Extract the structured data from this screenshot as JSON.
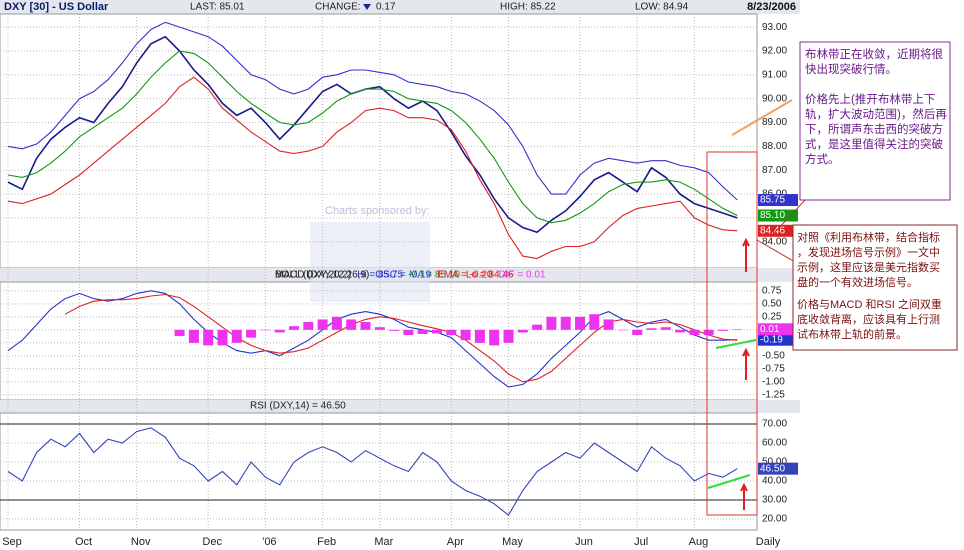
{
  "header": {
    "symbol": "DXY [30] - US Dollar",
    "last": "LAST: 85.01",
    "change_label": "CHANGE:",
    "change": "0.17",
    "high": "HIGH: 85.22",
    "low": "LOW: 84.94",
    "date": "8/23/2006"
  },
  "sponsor": "Charts sponsored by:",
  "chart_data": [
    {
      "type": "line",
      "title": "BOLL (DXY,20,2)",
      "period": "Daily",
      "categories": [
        "Sep",
        null,
        null,
        null,
        null,
        "Oct",
        null,
        null,
        null,
        "Nov",
        null,
        null,
        null,
        null,
        "Dec",
        null,
        null,
        null,
        "'06",
        null,
        null,
        null,
        "Feb",
        null,
        null,
        null,
        "Mar",
        null,
        null,
        null,
        null,
        "Apr",
        null,
        null,
        null,
        "May",
        null,
        null,
        null,
        null,
        "Jun",
        null,
        null,
        null,
        "Jul",
        null,
        null,
        null,
        "Aug",
        null,
        null,
        null
      ],
      "ylim": [
        82.9,
        93.55
      ],
      "yticks": [
        {
          "value": 84,
          "label": "84.00"
        },
        {
          "value": 85,
          "label": "85.00"
        },
        {
          "value": 86,
          "label": "86.00"
        },
        {
          "value": 87,
          "label": "87.00"
        },
        {
          "value": 88,
          "label": "88.00"
        },
        {
          "value": 89,
          "label": "89.00"
        },
        {
          "value": 90,
          "label": "90.00"
        },
        {
          "value": 91,
          "label": "91.00"
        },
        {
          "value": 92,
          "label": "92.00"
        },
        {
          "value": 93,
          "label": "93.00"
        }
      ],
      "grid": true,
      "series": [
        {
          "color": "#1a1a8c",
          "values": [
            86.5,
            86.2,
            87.5,
            88.3,
            88.8,
            89.2,
            89.0,
            89.8,
            90.5,
            91.5,
            92.3,
            92.6,
            92.0,
            91.2,
            90.6,
            89.8,
            89.3,
            89.6,
            89.0,
            88.3,
            88.9,
            89.6,
            90.3,
            90.6,
            90.2,
            90.4,
            90.5,
            90.0,
            89.6,
            89.9,
            89.5,
            88.6,
            87.6,
            86.8,
            85.8,
            85.0,
            84.6,
            84.4,
            84.9,
            85.3,
            85.9,
            86.6,
            86.9,
            86.5,
            86.1,
            87.1,
            86.7,
            86.0,
            85.6,
            85.4,
            85.2,
            85.0
          ]
        },
        {
          "name": "Hi = 85.75",
          "color": "#3333cc",
          "end_box": true,
          "values": [
            88.0,
            87.9,
            88.1,
            88.6,
            89.3,
            90.0,
            90.3,
            90.8,
            91.5,
            92.3,
            92.9,
            93.2,
            93.0,
            92.8,
            92.6,
            92.2,
            91.6,
            91.0,
            90.8,
            90.4,
            90.2,
            90.4,
            90.9,
            91.0,
            91.2,
            91.2,
            91.1,
            91.0,
            90.7,
            90.6,
            90.5,
            90.3,
            90.2,
            89.9,
            89.5,
            88.9,
            88.0,
            86.8,
            86.0,
            86.0,
            86.8,
            87.3,
            87.5,
            87.4,
            87.3,
            87.4,
            87.4,
            87.2,
            87.1,
            86.9,
            86.3,
            85.75
          ]
        },
        {
          "name": "MA = 85.10",
          "color": "#119911",
          "end_box": true,
          "values": [
            86.8,
            86.7,
            86.9,
            87.3,
            87.8,
            88.4,
            88.8,
            89.2,
            89.6,
            90.2,
            90.9,
            91.5,
            92.0,
            91.9,
            91.5,
            90.9,
            90.3,
            89.8,
            89.4,
            89.0,
            88.9,
            89.0,
            89.4,
            89.9,
            90.2,
            90.4,
            90.4,
            90.3,
            90.0,
            89.9,
            89.8,
            89.5,
            89.0,
            88.3,
            87.5,
            86.5,
            85.6,
            85.0,
            84.8,
            84.9,
            85.2,
            85.6,
            86.1,
            86.4,
            86.5,
            86.5,
            86.6,
            86.5,
            86.2,
            85.8,
            85.4,
            85.1
          ],
          "value_labels": [
            null,
            null,
            null,
            null,
            null,
            null,
            null,
            null,
            null,
            null,
            null,
            null,
            null,
            null,
            null,
            null,
            null,
            null,
            null,
            null,
            null,
            null,
            null,
            null,
            null,
            null,
            null,
            null,
            null,
            null,
            null,
            null,
            null,
            null,
            null,
            null,
            null,
            null,
            null,
            null,
            null,
            null,
            null,
            null,
            null,
            null,
            null,
            null,
            null,
            null,
            null,
            "85.10"
          ]
        },
        {
          "name": "Lo = 84.46",
          "color": "#dd2222",
          "end_box": true,
          "values": [
            85.7,
            85.6,
            85.8,
            86.0,
            86.4,
            86.8,
            87.3,
            87.8,
            88.3,
            88.8,
            89.3,
            89.8,
            90.5,
            90.9,
            90.4,
            89.6,
            89.1,
            88.6,
            88.2,
            87.8,
            87.7,
            87.8,
            88.0,
            88.6,
            89.0,
            89.5,
            89.6,
            89.5,
            89.2,
            89.2,
            89.1,
            88.7,
            87.8,
            86.6,
            85.6,
            84.3,
            83.4,
            83.3,
            83.6,
            83.8,
            83.8,
            84.0,
            84.6,
            85.1,
            85.4,
            85.5,
            85.6,
            85.7,
            85.0,
            84.7,
            84.5,
            84.46
          ]
        }
      ]
    },
    {
      "type": "line",
      "title": "MACD (DXY,12,26,9)",
      "ylim": [
        -1.35,
        0.92
      ],
      "yticks": [
        {
          "value": 0.75,
          "label": "0.75"
        },
        {
          "value": 0.5,
          "label": "0.50"
        },
        0.25,
        {
          "value": 0,
          "label": "0.00"
        },
        -0.25,
        {
          "value": -0.5,
          "label": "-0.50"
        },
        -0.75,
        {
          "value": -1,
          "label": "-1.00"
        },
        -1.25
      ],
      "grid": true,
      "series": [
        {
          "name": "OSC = -0.19",
          "color": "#2233cc",
          "end_box": true,
          "values": [
            -0.4,
            -0.2,
            0.1,
            0.4,
            0.6,
            0.7,
            0.6,
            0.55,
            0.6,
            0.7,
            0.75,
            0.7,
            0.5,
            0.2,
            -0.05,
            -0.25,
            -0.4,
            -0.45,
            -0.4,
            -0.5,
            -0.35,
            -0.2,
            0.0,
            0.2,
            0.3,
            0.35,
            0.3,
            0.2,
            0.05,
            0.0,
            -0.05,
            -0.15,
            -0.4,
            -0.65,
            -0.9,
            -1.1,
            -1.05,
            -0.85,
            -0.55,
            -0.3,
            -0.05,
            0.25,
            0.35,
            0.2,
            0.05,
            0.15,
            0.2,
            0.05,
            -0.1,
            -0.2,
            -0.2,
            -0.19
          ]
        },
        {
          "name": "EMA = -0.20",
          "color": "#dd2222",
          "values": [
            null,
            null,
            null,
            null,
            0.3,
            0.45,
            0.55,
            0.58,
            0.58,
            0.6,
            0.65,
            0.68,
            0.62,
            0.45,
            0.25,
            0.05,
            -0.15,
            -0.3,
            -0.4,
            -0.45,
            -0.42,
            -0.35,
            -0.2,
            -0.05,
            0.1,
            0.2,
            0.25,
            0.22,
            0.15,
            0.08,
            0.02,
            -0.05,
            -0.2,
            -0.4,
            -0.6,
            -0.85,
            -1.0,
            -0.95,
            -0.8,
            -0.55,
            -0.3,
            -0.05,
            0.15,
            0.2,
            0.15,
            0.12,
            0.15,
            0.1,
            0.0,
            -0.1,
            -0.18,
            -0.2
          ]
        },
        {
          "name": "DIF = 0.01",
          "type": "bar",
          "color": "#ee33ee",
          "end_box": true,
          "values": [
            null,
            null,
            null,
            null,
            null,
            null,
            null,
            null,
            null,
            null,
            null,
            null,
            -0.12,
            -0.25,
            -0.3,
            -0.3,
            -0.25,
            -0.15,
            0.0,
            -0.05,
            0.07,
            0.15,
            0.2,
            0.25,
            0.2,
            0.15,
            0.05,
            -0.02,
            -0.1,
            -0.08,
            -0.07,
            -0.1,
            -0.2,
            -0.25,
            -0.3,
            -0.25,
            -0.05,
            0.1,
            0.25,
            0.25,
            0.25,
            0.3,
            0.2,
            0.0,
            -0.1,
            0.03,
            0.05,
            -0.05,
            -0.1,
            -0.1,
            -0.02,
            0.01
          ]
        }
      ]
    },
    {
      "type": "line",
      "title": "RSI (DXY,14) = 46.50",
      "ylim": [
        14.2,
        75.8
      ],
      "yticks": [
        {
          "value": 20,
          "label": "20.00"
        },
        {
          "value": 30,
          "label": "30.00"
        },
        {
          "value": 40,
          "label": "40.00"
        },
        {
          "value": 50,
          "label": "50.00"
        },
        {
          "value": 60,
          "label": "60.00"
        },
        {
          "value": 70,
          "label": "70.00"
        }
      ],
      "grid": true,
      "hlines": [
        70,
        30
      ],
      "series": [
        {
          "color": "#3344bb",
          "end_box": true,
          "values": [
            45,
            40,
            55,
            62,
            58,
            65,
            55,
            62,
            60,
            66,
            68,
            63,
            52,
            48,
            40,
            45,
            38,
            50,
            42,
            38,
            50,
            55,
            58,
            55,
            50,
            56,
            52,
            48,
            45,
            55,
            50,
            40,
            35,
            32,
            28,
            22,
            35,
            45,
            50,
            55,
            52,
            60,
            55,
            50,
            45,
            58,
            52,
            48,
            40,
            44,
            42,
            46.5
          ],
          "value_labels": [
            null,
            null,
            null,
            null,
            null,
            null,
            null,
            null,
            null,
            null,
            null,
            null,
            null,
            null,
            null,
            null,
            null,
            null,
            null,
            null,
            null,
            null,
            null,
            null,
            null,
            null,
            null,
            null,
            null,
            null,
            null,
            null,
            null,
            null,
            null,
            null,
            null,
            null,
            null,
            null,
            null,
            null,
            null,
            null,
            null,
            null,
            null,
            null,
            null,
            null,
            null,
            "46.50"
          ]
        }
      ]
    }
  ],
  "annotations": [
    {
      "lines": [
        "布林带正在收敛，近期将很",
        "快出现突破行情。",
        "价格先上(推开布林带上下",
        "轨，扩大波动范围)，然后再",
        "下，所谓声东击西的突破方",
        "式，是这里值得关注的突破",
        "方式。"
      ]
    },
    {
      "lines": [
        "对照《利用布林带，结合指标",
        "，发现进场信号示例》一文中",
        "示例，这里应该是美元指数买",
        "盘的一个有效进场信号。",
        "价格与MACD 和RSI 之间双重",
        "底收敛背离，应该具有上行测",
        "试布林带上轨的前景。"
      ]
    }
  ]
}
